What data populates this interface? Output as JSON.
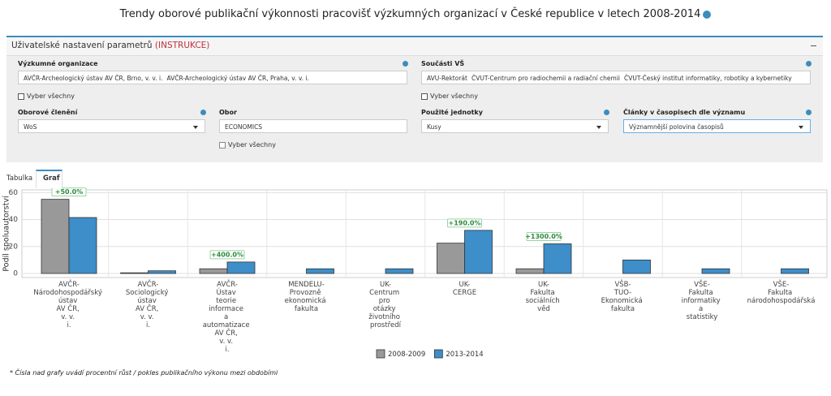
{
  "header": {
    "title": "Trendy oborové publikační výkonnosti pracovišť výzkumných organizací v České republice v letech 2008-2014"
  },
  "panel": {
    "title": "Uživatelské nastavení parametrů",
    "instructions_link": "(INSTRUKCE)"
  },
  "filters": {
    "organizations": {
      "label": "Výzkumné organizace",
      "tags": [
        "AVČR-Archeologický ústav AV ČR, Brno, v. v. i.",
        "AVČR-Archeologický ústav AV ČR, Praha, v. v. i."
      ],
      "select_all": "Vyber všechny"
    },
    "university_parts": {
      "label": "Součásti VŠ",
      "tags": [
        "AVU-Rektorát",
        "ČVUT-Centrum pro radiochemii a radiační chemii",
        "ČVUT-Český institut informatiky, robotiky a kybernetiky"
      ],
      "select_all": "Vyber všechny"
    },
    "field_classification": {
      "label": "Oborové členění",
      "value": "WoS"
    },
    "field": {
      "label": "Obor",
      "value": "ECONOMICS",
      "select_all": "Vyber všechny"
    },
    "units": {
      "label": "Použité jednotky",
      "value": "Kusy"
    },
    "journal_articles": {
      "label": "Články v časopisech dle významu",
      "value": "Významnější polovina časopisů"
    }
  },
  "tabs": [
    "Tabulka",
    "Graf"
  ],
  "chart_data": {
    "type": "bar",
    "y_label": "Podíl spoluautorství",
    "categories": [
      "AVČR-Národohospodářský ústav AV ČR, v. v. i.",
      "AVČR-Sociologický ústav AV ČR, v. v. i.",
      "AVČR-Ústav teorie informace a automatizace AV ČR, v. v. i.",
      "MENDELU-Provozně ekonomická fakulta",
      "UK-Centrum pro otázky životního prostředí",
      "UK-CERGE",
      "UK-Fakulta sociálních věd",
      "VŠB-TUO-Ekonomická fakulta",
      "VŠE-Fakulta informatiky a statistiky",
      "VŠE-Fakulta národohospodářská"
    ],
    "series": [
      {
        "name": "2008-2009",
        "color": "#999999",
        "values": [
          55,
          0.5,
          3.5,
          0,
          0,
          22.5,
          3.5,
          0,
          0,
          0
        ]
      },
      {
        "name": "2013-2014",
        "color": "#3d8ec9",
        "values": [
          41.5,
          2,
          8.5,
          3.5,
          3.5,
          32,
          22,
          10,
          3.5,
          3.5
        ]
      }
    ],
    "growth_labels": [
      "+50.0%",
      null,
      "+400.0%",
      null,
      null,
      "+190.0%",
      "+1300.0%",
      null,
      null,
      null
    ],
    "ylim": [
      -3,
      62
    ],
    "yticks": [
      0,
      20,
      40,
      60
    ],
    "grid": true
  },
  "footnote": "* Čísla nad grafy uvádí procentní růst / pokles publikačního výkonu mezi obdobími"
}
